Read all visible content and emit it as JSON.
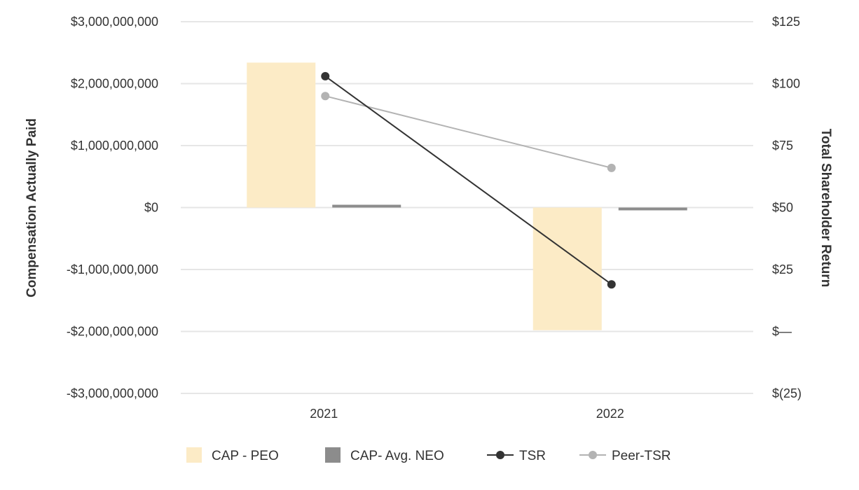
{
  "chart_data": {
    "type": "bar",
    "categories": [
      "2021",
      "2022"
    ],
    "series": [
      {
        "name": "CAP - PEO",
        "kind": "bar",
        "axis": "left",
        "values": [
          2340000000,
          -1980000000
        ],
        "color": "#FCEBC6"
      },
      {
        "name": "CAP- Avg. NEO",
        "kind": "bar",
        "axis": "left",
        "values": [
          30000000,
          -30000000
        ],
        "color": "#8C8C8C"
      },
      {
        "name": "TSR",
        "kind": "line",
        "axis": "right",
        "values": [
          103,
          19
        ],
        "color": "#333333"
      },
      {
        "name": "Peer-TSR",
        "kind": "line",
        "axis": "right",
        "values": [
          95,
          66
        ],
        "color": "#B3B3B3"
      }
    ],
    "left_axis": {
      "label": "Compensation Actually Paid",
      "ylim": [
        -3000000000,
        3000000000
      ],
      "ticks": [
        3000000000,
        2000000000,
        1000000000,
        0,
        -1000000000,
        -2000000000,
        -3000000000
      ],
      "tick_labels": [
        "$3,000,000,000",
        "$2,000,000,000",
        "$1,000,000,000",
        "$0",
        "-$1,000,000,000",
        "-$2,000,000,000",
        "-$3,000,000,000"
      ]
    },
    "right_axis": {
      "label": "Total Shareholder Return",
      "ylim": [
        -25,
        125
      ],
      "ticks": [
        125,
        100,
        75,
        50,
        25,
        0,
        -25
      ],
      "tick_labels": [
        "$125",
        "$100",
        "$75",
        "$50",
        "$25",
        "$—",
        "$(25)"
      ]
    },
    "grid": true,
    "gridline_color": "#E6E6E6",
    "legend_position": "bottom"
  }
}
